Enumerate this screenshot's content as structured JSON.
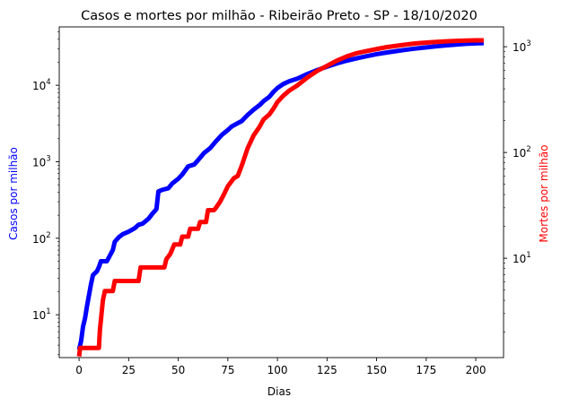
{
  "chart_data": {
    "type": "line",
    "title": "Casos e mortes por milhão - Ribeirão Preto - SP - 18/10/2020",
    "xlabel": "Dias",
    "ylabel_left": "Casos por milhão",
    "ylabel_right": "Mortes por milhão",
    "xlim": [
      -10,
      214
    ],
    "xticks": [
      0,
      25,
      50,
      75,
      100,
      125,
      150,
      175,
      200
    ],
    "left_axis": {
      "scale": "log",
      "ylim": [
        2.75,
        58000
      ],
      "ticks": [
        10,
        100,
        1000,
        10000
      ],
      "color": "#0000ff"
    },
    "right_axis": {
      "scale": "log",
      "ylim": [
        1.15,
        1540
      ],
      "ticks": [
        10,
        100,
        1000
      ],
      "color": "#ff0000"
    },
    "grid": false,
    "legend": "none",
    "series": [
      {
        "axis": "left",
        "color": "#0000ff",
        "points": [
          [
            0,
            3.5
          ],
          [
            1,
            4.5
          ],
          [
            2,
            7
          ],
          [
            3,
            9
          ],
          [
            4,
            13
          ],
          [
            5,
            18
          ],
          [
            6,
            25
          ],
          [
            7,
            33
          ],
          [
            9,
            37
          ],
          [
            10,
            42
          ],
          [
            11,
            50
          ],
          [
            14,
            50
          ],
          [
            17,
            70
          ],
          [
            18,
            90
          ],
          [
            20,
            103
          ],
          [
            22,
            113
          ],
          [
            25,
            122
          ],
          [
            28,
            135
          ],
          [
            30,
            150
          ],
          [
            32,
            155
          ],
          [
            35,
            180
          ],
          [
            37,
            210
          ],
          [
            39,
            240
          ],
          [
            40,
            410
          ],
          [
            42,
            430
          ],
          [
            45,
            450
          ],
          [
            47,
            520
          ],
          [
            50,
            600
          ],
          [
            52,
            680
          ],
          [
            55,
            870
          ],
          [
            58,
            920
          ],
          [
            60,
            1050
          ],
          [
            63,
            1300
          ],
          [
            66,
            1500
          ],
          [
            69,
            1850
          ],
          [
            72,
            2250
          ],
          [
            75,
            2600
          ],
          [
            77,
            2900
          ],
          [
            80,
            3200
          ],
          [
            82,
            3400
          ],
          [
            85,
            4100
          ],
          [
            88,
            4800
          ],
          [
            91,
            5500
          ],
          [
            93,
            6200
          ],
          [
            96,
            7100
          ],
          [
            98,
            8200
          ],
          [
            100,
            9200
          ],
          [
            103,
            10400
          ],
          [
            106,
            11300
          ],
          [
            110,
            12200
          ],
          [
            115,
            14000
          ],
          [
            120,
            15800
          ],
          [
            125,
            17500
          ],
          [
            130,
            19300
          ],
          [
            135,
            21000
          ],
          [
            140,
            22500
          ],
          [
            145,
            24000
          ],
          [
            150,
            25500
          ],
          [
            155,
            26800
          ],
          [
            160,
            28000
          ],
          [
            165,
            29200
          ],
          [
            170,
            30300
          ],
          [
            175,
            31300
          ],
          [
            180,
            32300
          ],
          [
            185,
            33200
          ],
          [
            190,
            34000
          ],
          [
            195,
            34800
          ],
          [
            200,
            35300
          ],
          [
            204,
            35600
          ]
        ]
      },
      {
        "axis": "right",
        "color": "#ff0000",
        "points": [
          [
            0,
            1.18
          ],
          [
            0.5,
            1.42
          ],
          [
            4,
            1.42
          ],
          [
            10,
            1.42
          ],
          [
            10.5,
            2.1
          ],
          [
            11,
            2.6
          ],
          [
            12,
            4.0
          ],
          [
            13,
            4.9
          ],
          [
            17,
            4.9
          ],
          [
            18,
            6.1
          ],
          [
            30,
            6.1
          ],
          [
            31,
            8.2
          ],
          [
            43,
            8.2
          ],
          [
            44,
            9.8
          ],
          [
            46,
            11
          ],
          [
            48,
            13.5
          ],
          [
            51,
            13.5
          ],
          [
            52,
            16
          ],
          [
            55,
            16
          ],
          [
            56,
            19
          ],
          [
            60,
            19
          ],
          [
            61,
            22
          ],
          [
            64,
            22
          ],
          [
            65,
            28.5
          ],
          [
            68,
            28.5
          ],
          [
            69,
            30
          ],
          [
            71,
            34
          ],
          [
            73,
            40
          ],
          [
            75,
            48
          ],
          [
            78,
            57
          ],
          [
            80,
            60
          ],
          [
            82,
            75
          ],
          [
            85,
            110
          ],
          [
            88,
            145
          ],
          [
            91,
            175
          ],
          [
            93,
            205
          ],
          [
            96,
            230
          ],
          [
            98,
            260
          ],
          [
            100,
            300
          ],
          [
            103,
            345
          ],
          [
            106,
            385
          ],
          [
            110,
            430
          ],
          [
            115,
            510
          ],
          [
            120,
            590
          ],
          [
            125,
            660
          ],
          [
            130,
            740
          ],
          [
            135,
            810
          ],
          [
            140,
            870
          ],
          [
            145,
            910
          ],
          [
            150,
            950
          ],
          [
            155,
            990
          ],
          [
            160,
            1020
          ],
          [
            165,
            1050
          ],
          [
            170,
            1075
          ],
          [
            175,
            1095
          ],
          [
            180,
            1110
          ],
          [
            185,
            1125
          ],
          [
            190,
            1135
          ],
          [
            195,
            1145
          ],
          [
            200,
            1150
          ],
          [
            204,
            1150
          ]
        ]
      }
    ]
  }
}
